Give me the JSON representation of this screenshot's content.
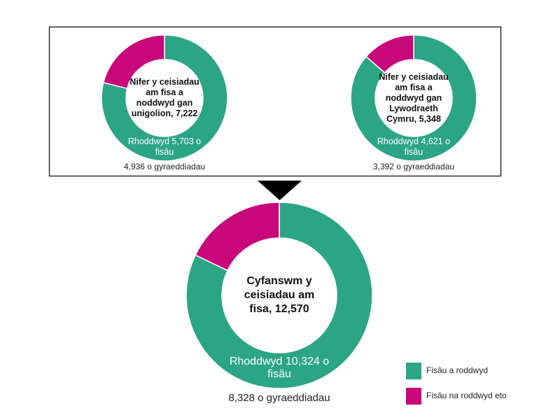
{
  "chart_data": [
    {
      "type": "donut",
      "title": "Nifer y ceisiadau am fisa a noddwyd gan unigolion, 7,222",
      "categories": [
        "Fisâu a roddwyd",
        "Fisâu na roddwyd eto"
      ],
      "values": [
        5703,
        1519
      ],
      "colors": [
        "#2ba585",
        "#c8077a"
      ],
      "value_labels": [
        "Rhoddwyd 5,703 o fisâu",
        null
      ],
      "note": "4,936 o gyraeddiadau"
    },
    {
      "type": "donut",
      "title": "Nifer y ceisiadau am fisa a noddwyd gan Lywodraeth Cymru, 5,348",
      "categories": [
        "Fisâu a roddwyd",
        "Fisâu na roddwyd eto"
      ],
      "values": [
        4621,
        727
      ],
      "colors": [
        "#2ba585",
        "#c8077a"
      ],
      "value_labels": [
        "Rhoddwyd 4,621 o fisâu",
        null
      ],
      "note": "3,392 o gyraeddiadau"
    },
    {
      "type": "donut",
      "title": "Cyfanswm y ceisiadau am fisa, 12,570",
      "categories": [
        "Fisâu a roddwyd",
        "Fisâu na roddwyd eto"
      ],
      "values": [
        10324,
        2246
      ],
      "colors": [
        "#2ba585",
        "#c8077a"
      ],
      "value_labels": [
        "Rhoddwyd 10,324 o fisâu",
        null
      ],
      "note": "8,328 o gyraeddiadau",
      "legend": "bottom-right"
    }
  ]
}
